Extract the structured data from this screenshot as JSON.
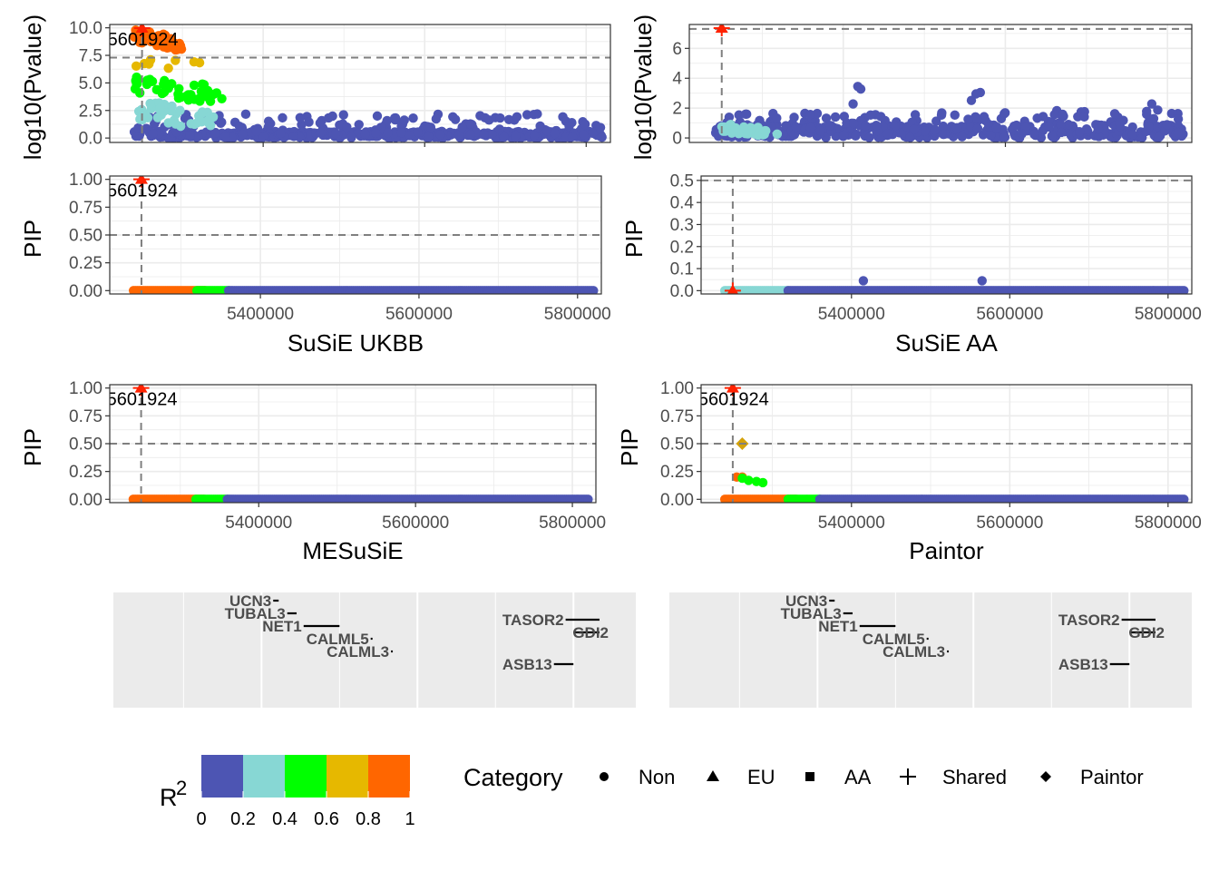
{
  "chart_data": [
    {
      "panel": "ukbb_pvalue",
      "type": "scatter",
      "title": "",
      "xlabel": "",
      "ylabel": "log10(Pvalue)",
      "xlim": [
        5210000,
        5830000
      ],
      "ylim": [
        -0.4,
        10.3
      ],
      "yticks": [
        0.0,
        2.5,
        5.0,
        7.5,
        10.0
      ],
      "ytick_labels": [
        "0.0",
        "2.5",
        "5.0",
        "7.5",
        "10.0"
      ],
      "xticks": [
        5400000,
        5600000,
        5800000
      ],
      "threshold": 7.3,
      "lead_x": 5250000,
      "lead_label": "5601924",
      "grid": true,
      "point_groups": [
        {
          "category": "Shared",
          "r2_bin": "0.8-1",
          "x": [
            5240000,
            5300000
          ],
          "y": [
            7.8,
            10.0
          ],
          "n": 45
        },
        {
          "category": "Non",
          "r2_bin": "0.6-0.8",
          "x": [
            5242000,
            5330000
          ],
          "y": [
            5.8,
            7.5
          ],
          "n": 8
        },
        {
          "category": "Non",
          "r2_bin": "0.4-0.6",
          "x": [
            5240000,
            5350000
          ],
          "y": [
            3.0,
            5.8
          ],
          "n": 40
        },
        {
          "category": "Non",
          "r2_bin": "0.2-0.4",
          "x": [
            5245000,
            5345000
          ],
          "y": [
            0.5,
            3.5
          ],
          "n": 40
        },
        {
          "category": "Non",
          "r2_bin": "0-0.2",
          "x": [
            5240000,
            5820000
          ],
          "y": [
            0.0,
            2.2
          ],
          "n": 500
        }
      ]
    },
    {
      "panel": "aa_pvalue",
      "type": "scatter",
      "title": "",
      "xlabel": "",
      "ylabel": "log10(Pvalue)",
      "xlim": [
        5210000,
        5830000
      ],
      "ylim": [
        -0.3,
        7.6
      ],
      "yticks": [
        0,
        2,
        4,
        6
      ],
      "ytick_labels": [
        "0",
        "2",
        "4",
        "6"
      ],
      "xticks": [
        5400000,
        5600000,
        5800000
      ],
      "threshold": 7.3,
      "lead_x": 5250000,
      "lead_label": "",
      "grid": true,
      "point_groups": [
        {
          "category": "Non",
          "r2_bin": "0.2-0.4",
          "x": [
            5250000,
            5320000
          ],
          "y": [
            0.0,
            1.0
          ],
          "n": 30
        },
        {
          "category": "Non",
          "r2_bin": "0-0.2",
          "x": [
            5240000,
            5820000
          ],
          "y": [
            0.0,
            3.7
          ],
          "n": 500
        }
      ]
    },
    {
      "panel": "susie_ukbb",
      "type": "scatter",
      "title": "",
      "xlabel": "SuSiE UKBB",
      "ylabel": "PIP",
      "xlim": [
        5210000,
        5830000
      ],
      "ylim": [
        -0.03,
        1.03
      ],
      "yticks": [
        0.0,
        0.25,
        0.5,
        0.75,
        1.0
      ],
      "ytick_labels": [
        "0.00",
        "0.25",
        "0.50",
        "0.75",
        "1.00"
      ],
      "xticks": [
        5400000,
        5600000,
        5800000
      ],
      "xtick_labels": [
        "5400000",
        "5600000",
        "5800000"
      ],
      "threshold": 0.5,
      "lead_x": 5250000,
      "lead_label": "5601924",
      "lead_pip": 1.0,
      "grid": true
    },
    {
      "panel": "susie_aa",
      "type": "scatter",
      "title": "",
      "xlabel": "SuSiE AA",
      "ylabel": "PIP",
      "xlim": [
        5210000,
        5830000
      ],
      "ylim": [
        -0.015,
        0.52
      ],
      "yticks": [
        0.0,
        0.1,
        0.2,
        0.3,
        0.4,
        0.5
      ],
      "ytick_labels": [
        "0.0",
        "0.1",
        "0.2",
        "0.3",
        "0.4",
        "0.5"
      ],
      "xticks": [
        5400000,
        5600000,
        5800000
      ],
      "xtick_labels": [
        "5400000",
        "5600000",
        "5800000"
      ],
      "threshold": 0.5,
      "lead_x": 5250000,
      "lead_label": "",
      "lead_pip": 0.0,
      "grid": true,
      "bumps": [
        [
          5415000,
          0.045
        ],
        [
          5565000,
          0.045
        ]
      ]
    },
    {
      "panel": "mesusie",
      "type": "scatter",
      "title": "",
      "xlabel": "MESuSiE",
      "ylabel": "PIP",
      "xlim": [
        5210000,
        5830000
      ],
      "ylim": [
        -0.03,
        1.03
      ],
      "yticks": [
        0.0,
        0.25,
        0.5,
        0.75,
        1.0
      ],
      "ytick_labels": [
        "0.00",
        "0.25",
        "0.50",
        "0.75",
        "1.00"
      ],
      "xticks": [
        5400000,
        5600000,
        5800000
      ],
      "xtick_labels": [
        "5400000",
        "5600000",
        "5800000"
      ],
      "threshold": 0.5,
      "lead_x": 5250000,
      "lead_label": "5601924",
      "lead_pip": 1.0,
      "grid": true
    },
    {
      "panel": "paintor",
      "type": "scatter",
      "title": "",
      "xlabel": "Paintor",
      "ylabel": "PIP",
      "xlim": [
        5210000,
        5830000
      ],
      "ylim": [
        -0.03,
        1.03
      ],
      "yticks": [
        0.0,
        0.25,
        0.5,
        0.75,
        1.0
      ],
      "ytick_labels": [
        "0.00",
        "0.25",
        "0.50",
        "0.75",
        "1.00"
      ],
      "xticks": [
        5400000,
        5600000,
        5800000
      ],
      "xtick_labels": [
        "5400000",
        "5600000",
        "5800000"
      ],
      "threshold": 0.5,
      "lead_x": 5250000,
      "lead_label": "5601924",
      "lead_pip": 1.0,
      "paintor_point": [
        5262000,
        0.5
      ],
      "mid_points": [
        [
          5255000,
          0.2
        ],
        [
          5262000,
          0.2
        ],
        [
          5270000,
          0.17
        ],
        [
          5280000,
          0.16
        ],
        [
          5288000,
          0.15
        ],
        [
          5262000,
          0.19
        ]
      ],
      "grid": true
    }
  ],
  "gene_track": {
    "genes": [
      {
        "name": "UCN3",
        "start": 5415000,
        "end": 5422000,
        "row": 0
      },
      {
        "name": "TUBAL3",
        "start": 5433000,
        "end": 5445000,
        "row": 1
      },
      {
        "name": "NET1",
        "start": 5454000,
        "end": 5500000,
        "row": 2
      },
      {
        "name": "CALML5",
        "start": 5540000,
        "end": 5541500,
        "row": 3
      },
      {
        "name": "CALML3",
        "start": 5566000,
        "end": 5567500,
        "row": 4
      },
      {
        "name": "TASOR2",
        "start": 5790000,
        "end": 5870000,
        "row": 1.5
      },
      {
        "name": "GDI2",
        "start": 5800000,
        "end": 5872000,
        "row": 2.5,
        "label_after": true
      },
      {
        "name": "ASB13",
        "start": 5775000,
        "end": 5800000,
        "row": 5
      }
    ]
  },
  "legend": {
    "colorbar_title": "R",
    "colorbar_title_sup": "2",
    "colorbar_ticks": [
      "0",
      "0.2",
      "0.4",
      "0.6",
      "0.8",
      "1"
    ],
    "category_title": "Category",
    "categories": [
      {
        "label": "Non",
        "shape": "circle"
      },
      {
        "label": "EU",
        "shape": "triangle"
      },
      {
        "label": "AA",
        "shape": "square"
      },
      {
        "label": "Shared",
        "shape": "plus"
      },
      {
        "label": "Paintor",
        "shape": "diamond"
      }
    ]
  },
  "colors": {
    "r2_0_02": "#4d55b3",
    "r2_02_04": "#87d7d4",
    "r2_04_06": "#00ff00",
    "r2_06_08": "#e6b800",
    "r2_08_1": "#ff6600",
    "lead": "#ff2200",
    "paintor": "#d4a20b"
  }
}
